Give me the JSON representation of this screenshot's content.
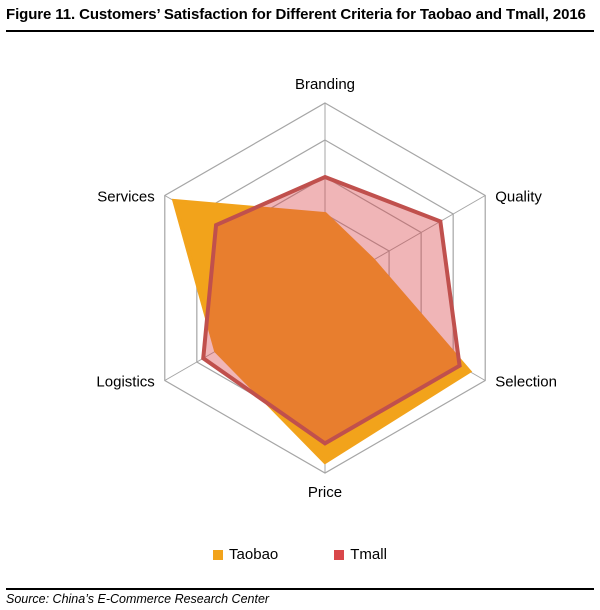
{
  "title": "Figure 11. Customers’ Satisfaction for Different Criteria for Taobao and Tmall, 2016",
  "source": "Source: China’s E-Commerce Research Center",
  "chart_data": {
    "type": "radar",
    "axes": [
      "Branding",
      "Quality",
      "Selection",
      "Price",
      "Logistics",
      "Services"
    ],
    "range": [
      0,
      5
    ],
    "gridlines": 5,
    "series": [
      {
        "name": "Taobao",
        "values": [
          2.0,
          1.5,
          4.5,
          4.7,
          3.4,
          4.7
        ],
        "fill": "#f2a31b",
        "stroke": "#f2a31b",
        "fill_opacity": 1
      },
      {
        "name": "Tmall",
        "values": [
          3.0,
          3.6,
          4.2,
          4.2,
          3.8,
          3.4
        ],
        "fill": "#d9474a",
        "stroke": "#c0504d",
        "fill_opacity": 0.4
      }
    ],
    "grid_color": "#a6a6a6",
    "legend_position": "bottom"
  },
  "legend": {
    "items": [
      {
        "label": "Taobao",
        "color": "#f2a31b"
      },
      {
        "label": "Tmall",
        "color": "#d9474a"
      }
    ]
  }
}
